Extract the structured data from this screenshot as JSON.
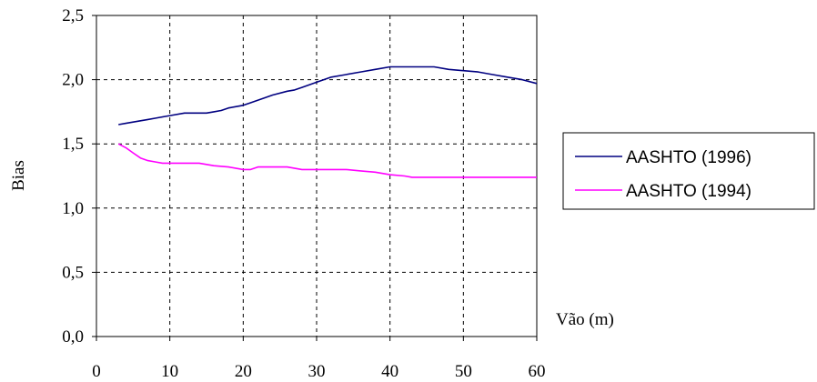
{
  "chart_data": {
    "type": "line",
    "xlabel": "Vão (m)",
    "ylabel": "Bias",
    "xlim": [
      0,
      60
    ],
    "ylim": [
      0.0,
      2.5
    ],
    "x_ticks": [
      "0",
      "10",
      "20",
      "30",
      "40",
      "50",
      "60"
    ],
    "x_tick_values": [
      0,
      10,
      20,
      30,
      40,
      50,
      60
    ],
    "y_ticks": [
      "0,0",
      "0,5",
      "1,0",
      "1,5",
      "2,0",
      "2,5"
    ],
    "y_tick_values": [
      0.0,
      0.5,
      1.0,
      1.5,
      2.0,
      2.5
    ],
    "grid": true,
    "grid_style": "dashed",
    "legend_position": "right",
    "series": [
      {
        "name": "AASHTO (1996)",
        "color": "#000080",
        "x": [
          3,
          4,
          6,
          7,
          8,
          10,
          12,
          14,
          15,
          16,
          17,
          18,
          20,
          21,
          23,
          24,
          26,
          27,
          28,
          30,
          32,
          34,
          36,
          38,
          40,
          42,
          44,
          46,
          48,
          50,
          52,
          54,
          56,
          58,
          60
        ],
        "y": [
          1.65,
          1.66,
          1.68,
          1.69,
          1.7,
          1.72,
          1.74,
          1.74,
          1.74,
          1.75,
          1.76,
          1.78,
          1.8,
          1.82,
          1.86,
          1.88,
          1.91,
          1.92,
          1.94,
          1.98,
          2.02,
          2.04,
          2.06,
          2.08,
          2.1,
          2.1,
          2.1,
          2.1,
          2.08,
          2.07,
          2.06,
          2.04,
          2.02,
          2.0,
          1.97
        ]
      },
      {
        "name": "AASHTO (1994)",
        "color": "#FF00FF",
        "x": [
          3,
          4,
          5,
          6,
          7,
          8,
          9,
          10,
          12,
          14,
          15,
          16,
          18,
          20,
          21,
          22,
          24,
          26,
          28,
          30,
          32,
          34,
          36,
          38,
          40,
          42,
          43,
          44,
          46,
          48,
          50,
          52,
          54,
          56,
          58,
          60
        ],
        "y": [
          1.5,
          1.47,
          1.43,
          1.39,
          1.37,
          1.36,
          1.35,
          1.35,
          1.35,
          1.35,
          1.34,
          1.33,
          1.32,
          1.3,
          1.3,
          1.32,
          1.32,
          1.32,
          1.3,
          1.3,
          1.3,
          1.3,
          1.29,
          1.28,
          1.26,
          1.25,
          1.24,
          1.24,
          1.24,
          1.24,
          1.24,
          1.24,
          1.24,
          1.24,
          1.24,
          1.24
        ]
      }
    ]
  }
}
